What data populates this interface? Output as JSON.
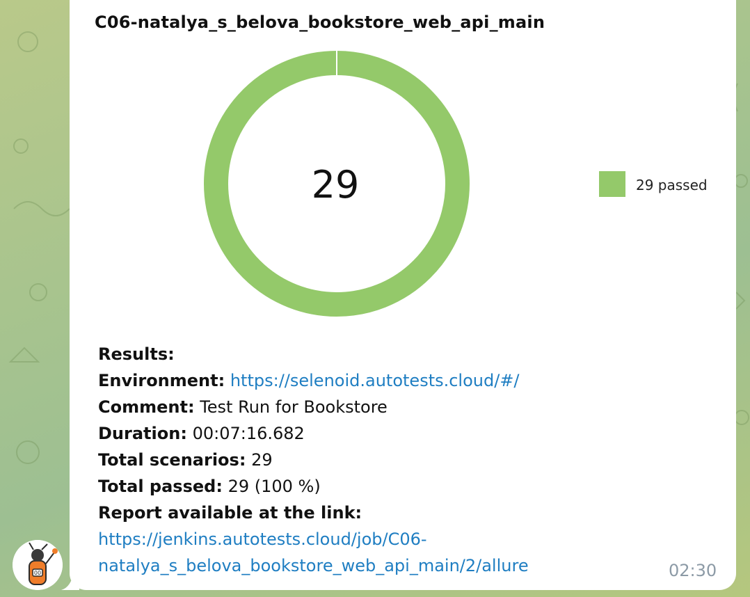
{
  "chart": {
    "title": "C06-natalya_s_belova_bookstore_web_api_main",
    "center_value": "29",
    "legend_label": "29 passed",
    "colors": {
      "passed": "#94c96a"
    }
  },
  "chart_data": {
    "type": "pie",
    "title": "C06-natalya_s_belova_bookstore_web_api_main",
    "categories": [
      "passed"
    ],
    "values": [
      29
    ],
    "legend": [
      "29 passed"
    ],
    "legend_position": "right",
    "center_label": "29"
  },
  "message": {
    "results_label": "Results:",
    "environment_label": "Environment:",
    "environment_url": "https://selenoid.autotests.cloud/#/",
    "comment_label": "Comment:",
    "comment_value": "Test Run for Bookstore",
    "duration_label": "Duration:",
    "duration_value": "00:07:16.682",
    "total_scenarios_label": "Total scenarios:",
    "total_scenarios_value": "29",
    "total_passed_label": "Total passed:",
    "total_passed_value": "29 (100 %)",
    "report_label": "Report available at the link:",
    "report_url_line1": "https://jenkins.autotests.cloud/job/C06-",
    "report_url_line2": "natalya_s_belova_bookstore_web_api_main/2/allure",
    "time": "02:30"
  }
}
